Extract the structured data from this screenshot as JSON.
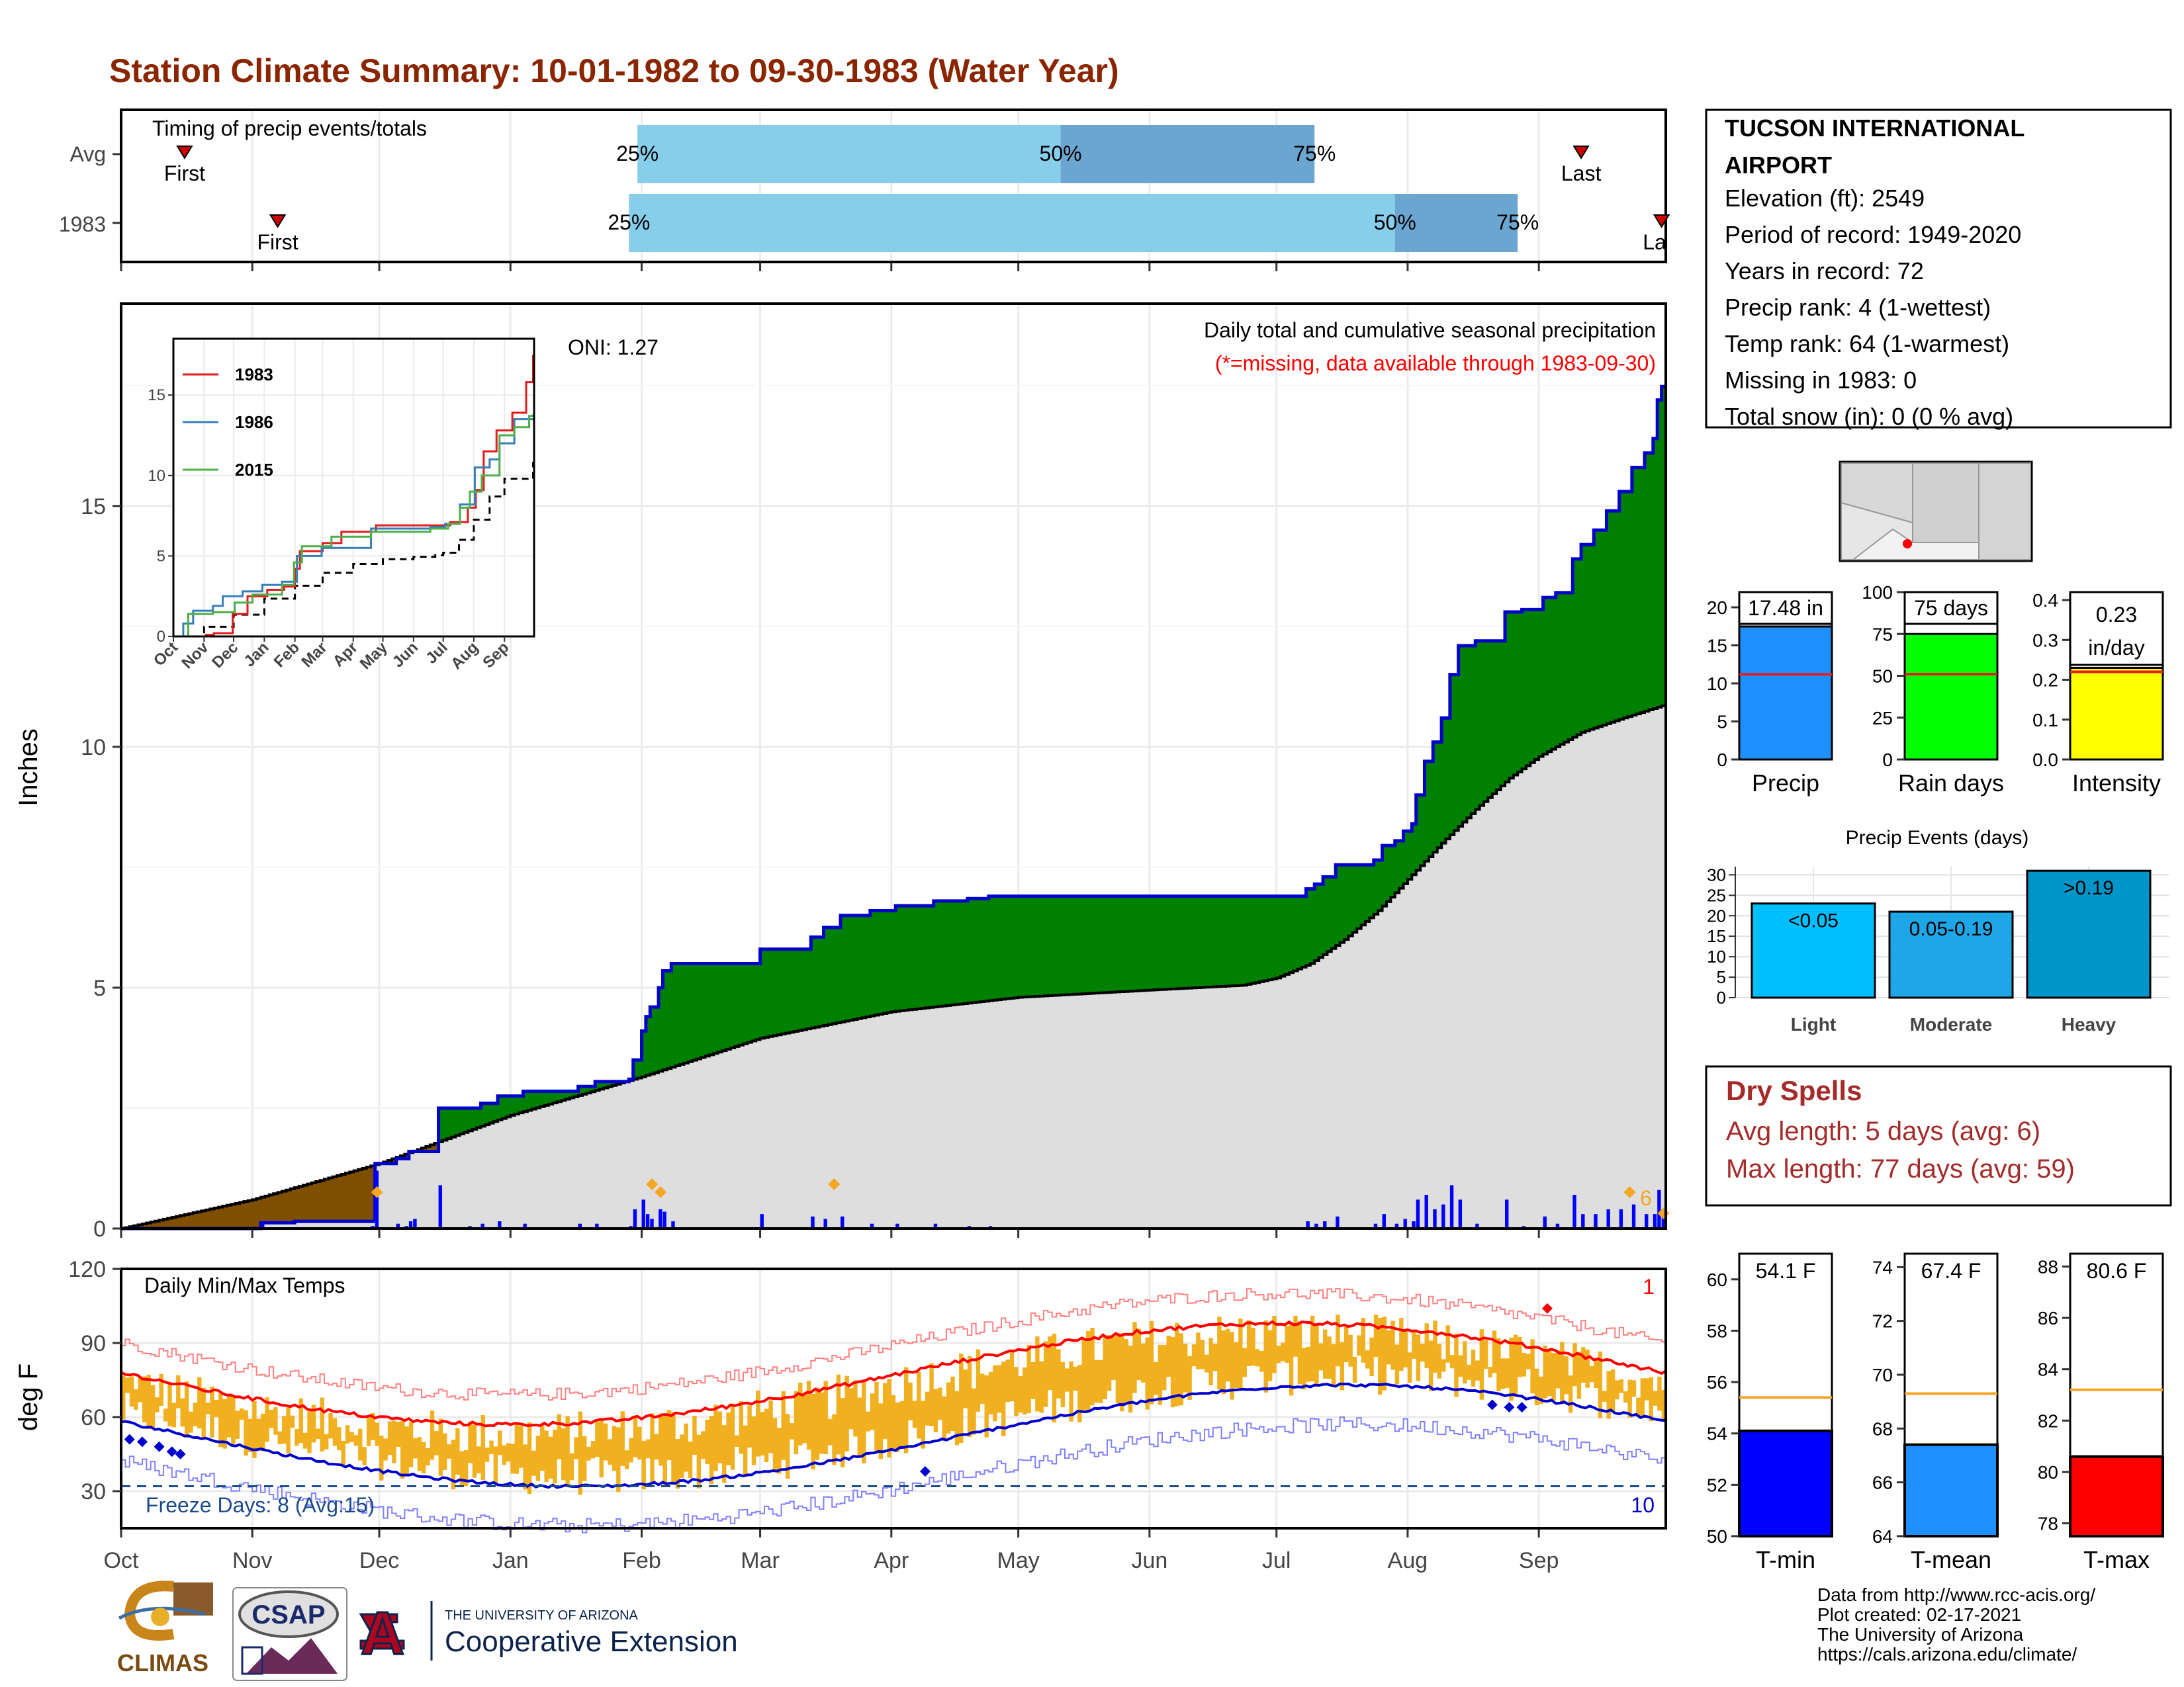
{
  "title": "Station Climate Summary: 10-01-1982 to 09-30-1983 (Water Year)",
  "colors": {
    "title": "#8B2500",
    "avg_fill": "#dedede",
    "above_fill": "#008000",
    "below_fill": "#7f4f00",
    "cum_line": "#0000cc",
    "daily_bar": "#0000ff",
    "range_bar": "#f0b020",
    "tmax_avg": "#ff0000",
    "tmin_avg": "#0000cc",
    "light_blue": "#87ceeb",
    "mid_blue": "#6aa6d0",
    "brown_red": "#a52a2a"
  },
  "timing": {
    "label": "Timing of precip events/totals",
    "rows": [
      {
        "name": "Avg",
        "first_label": "First",
        "last_label": "Last",
        "first_day": 15,
        "last_day": 345,
        "p25_day": 122,
        "p50_day": 222,
        "p75_day": 282,
        "p25_label": "25%",
        "p50_label": "50%",
        "p75_label": "75%"
      },
      {
        "name": "1983",
        "first_label": "First",
        "last_label": "La",
        "first_day": 37,
        "last_day": 364,
        "p25_day": 120,
        "p50_day": 301,
        "p75_day": 330,
        "p25_label": "25%",
        "p50_label": "50%",
        "p75_label": "75%"
      }
    ]
  },
  "month_labels": [
    "Oct",
    "Nov",
    "Dec",
    "Jan",
    "Feb",
    "Mar",
    "Apr",
    "May",
    "Jun",
    "Jul",
    "Aug",
    "Sep"
  ],
  "month_starts": [
    0,
    31,
    61,
    92,
    123,
    151,
    182,
    212,
    243,
    273,
    304,
    335
  ],
  "main": {
    "ylabel": "Inches",
    "yticks": [
      0,
      5,
      10,
      15
    ],
    "ylim": [
      0,
      19.2
    ],
    "oni": "ONI: 1.27",
    "caption": "Daily total and cumulative seasonal precipitation",
    "missing_note": "(*=missing, data available through 1983-09-30)",
    "marker_label": "6",
    "inset": {
      "yticks": [
        0,
        5,
        10,
        15
      ],
      "ylim": [
        0,
        18.5
      ],
      "xlabels": [
        "Oct",
        "Nov",
        "Dec",
        "Jan",
        "Feb",
        "Mar",
        "Apr",
        "May",
        "Jun",
        "Jul",
        "Aug",
        "Sep"
      ],
      "legend": [
        {
          "name": "1983",
          "color": "#e41a1c"
        },
        {
          "name": "1986",
          "color": "#377eb8"
        },
        {
          "name": "2015",
          "color": "#4daf4a"
        }
      ]
    }
  },
  "temps": {
    "ylabel": "deg F",
    "label": "Daily Min/Max Temps",
    "yticks": [
      30,
      60,
      90,
      120
    ],
    "ylim": [
      15,
      120
    ],
    "freeze_label": "Freeze Days: 8 (Avg:15)",
    "freeze_line": 32,
    "record_high_count": "1",
    "record_low_count": "10"
  },
  "station": {
    "name_line1": "TUCSON INTERNATIONAL",
    "name_line2": "AIRPORT",
    "lines": [
      "Elevation (ft): 2549",
      "Period of record: 1949-2020",
      "Years in record: 72",
      "Precip rank: 4 (1-wettest)",
      "Temp rank: 64 (1-warmest)",
      "Missing in 1983: 0",
      "Total snow (in): 0 (0 % avg)"
    ]
  },
  "summary_bars": [
    {
      "name": "Precip",
      "label": "17.48 in",
      "value": 17.48,
      "avg": 11.2,
      "ymax": 22,
      "yticks": [
        0,
        5,
        10,
        15,
        20
      ],
      "color": "#1e90ff"
    },
    {
      "name": "Rain days",
      "label": "75 days",
      "value": 75,
      "avg": 51,
      "ymax": 100,
      "yticks": [
        0,
        25,
        50,
        75,
        100
      ],
      "color": "#00ff00"
    },
    {
      "name": "Intensity",
      "label": "0.23",
      "label2": "in/day",
      "value": 0.23,
      "avg": 0.22,
      "ymax": 0.42,
      "yticks": [
        0.0,
        0.1,
        0.2,
        0.3,
        0.4
      ],
      "color": "#ffff00"
    }
  ],
  "events": {
    "title": "Precip Events (days)",
    "yticks": [
      0,
      5,
      10,
      15,
      20,
      25,
      30
    ],
    "ymax": 32,
    "bars": [
      {
        "name": "Light",
        "range": "<0.05",
        "value": 23,
        "color": "#00bfff"
      },
      {
        "name": "Moderate",
        "range": "0.05-0.19",
        "value": 21,
        "color": "#1ea7e8"
      },
      {
        "name": "Heavy",
        "range": ">0.19",
        "value": 31,
        "color": "#0095c8"
      }
    ]
  },
  "dry_spells": {
    "title": "Dry Spells",
    "avg_line": "Avg length: 5 days (avg: 6)",
    "max_line": "Max length: 77 days (avg: 59)"
  },
  "temp_bars": [
    {
      "name": "T-min",
      "label": "54.1 F",
      "value": 54.1,
      "avg": 55.4,
      "ymin": 50,
      "ymax": 61,
      "yticks": [
        50,
        52,
        54,
        56,
        58,
        60
      ],
      "color": "#0000ff"
    },
    {
      "name": "T-mean",
      "label": "67.4 F",
      "value": 67.4,
      "avg": 69.3,
      "ymin": 64,
      "ymax": 74.5,
      "yticks": [
        64,
        66,
        68,
        70,
        72,
        74
      ],
      "color": "#1e90ff"
    },
    {
      "name": "T-max",
      "label": "80.6 F",
      "value": 80.6,
      "avg": 83.2,
      "ymin": 77.5,
      "ymax": 88.5,
      "yticks": [
        78,
        80,
        82,
        84,
        86,
        88
      ],
      "color": "#ff0000"
    }
  ],
  "credits": [
    "Data from http://www.rcc-acis.org/",
    "Plot created: 02-17-2021",
    "The University of Arizona",
    "https://cals.arizona.edu/climate/"
  ],
  "logos": {
    "climas": "CLIMAS",
    "csap": "CSAP",
    "ua_small": "THE UNIVERSITY OF ARIZONA",
    "ua_big": "Cooperative Extension",
    "ua_letter": "A"
  },
  "chart_data": {
    "type": "area",
    "title": "Station Climate Summary: 10-01-1982 to 09-30-1983 (Water Year)",
    "ylabel": "Inches",
    "xlabel": "",
    "ylim": [
      0,
      19.2
    ],
    "x_categories": [
      "Oct",
      "Nov",
      "Dec",
      "Jan",
      "Feb",
      "Mar",
      "Apr",
      "May",
      "Jun",
      "Jul",
      "Aug",
      "Sep"
    ],
    "cumulative_1983_steps": [
      [
        0,
        0
      ],
      [
        33,
        0.12
      ],
      [
        41,
        0.15
      ],
      [
        60,
        1.35
      ],
      [
        65,
        1.45
      ],
      [
        68,
        1.6
      ],
      [
        75,
        2.5
      ],
      [
        85,
        2.6
      ],
      [
        89,
        2.75
      ],
      [
        95,
        2.85
      ],
      [
        108,
        2.95
      ],
      [
        112,
        3.05
      ],
      [
        120,
        3.1
      ],
      [
        121,
        3.5
      ],
      [
        123,
        4.1
      ],
      [
        124,
        4.4
      ],
      [
        125,
        4.6
      ],
      [
        127,
        5.0
      ],
      [
        128,
        5.35
      ],
      [
        130,
        5.5
      ],
      [
        151,
        5.8
      ],
      [
        163,
        6.05
      ],
      [
        166,
        6.25
      ],
      [
        170,
        6.5
      ],
      [
        177,
        6.6
      ],
      [
        183,
        6.7
      ],
      [
        192,
        6.8
      ],
      [
        200,
        6.85
      ],
      [
        205,
        6.9
      ],
      [
        280,
        7.05
      ],
      [
        282,
        7.15
      ],
      [
        284,
        7.3
      ],
      [
        287,
        7.55
      ],
      [
        296,
        7.65
      ],
      [
        298,
        7.95
      ],
      [
        301,
        8.05
      ],
      [
        303,
        8.25
      ],
      [
        305,
        8.4
      ],
      [
        306,
        9.0
      ],
      [
        308,
        9.7
      ],
      [
        310,
        10.1
      ],
      [
        312,
        10.6
      ],
      [
        314,
        11.5
      ],
      [
        316,
        12.1
      ],
      [
        320,
        12.2
      ],
      [
        327,
        12.8
      ],
      [
        331,
        12.85
      ],
      [
        336,
        13.1
      ],
      [
        339,
        13.2
      ],
      [
        343,
        13.9
      ],
      [
        345,
        14.2
      ],
      [
        348,
        14.5
      ],
      [
        351,
        14.9
      ],
      [
        354,
        15.3
      ],
      [
        357,
        15.8
      ],
      [
        360,
        16.1
      ],
      [
        362,
        16.4
      ],
      [
        363,
        17.2
      ],
      [
        364,
        17.48
      ]
    ],
    "cumulative_avg": [
      [
        0,
        0
      ],
      [
        31,
        0.6
      ],
      [
        61,
        1.35
      ],
      [
        92,
        2.35
      ],
      [
        123,
        3.15
      ],
      [
        151,
        3.95
      ],
      [
        182,
        4.5
      ],
      [
        212,
        4.8
      ],
      [
        243,
        4.95
      ],
      [
        265,
        5.05
      ],
      [
        273,
        5.2
      ],
      [
        281,
        5.5
      ],
      [
        289,
        6.0
      ],
      [
        297,
        6.6
      ],
      [
        304,
        7.25
      ],
      [
        312,
        8.0
      ],
      [
        320,
        8.7
      ],
      [
        328,
        9.35
      ],
      [
        335,
        9.8
      ],
      [
        345,
        10.3
      ],
      [
        355,
        10.6
      ],
      [
        364,
        10.85
      ]
    ],
    "daily_precip": [
      [
        33,
        0.12
      ],
      [
        41,
        0.03
      ],
      [
        59,
        0.05
      ],
      [
        60,
        1.2
      ],
      [
        65,
        0.1
      ],
      [
        67,
        0.05
      ],
      [
        68,
        0.15
      ],
      [
        69,
        0.2
      ],
      [
        75,
        0.9
      ],
      [
        82,
        0.05
      ],
      [
        85,
        0.1
      ],
      [
        89,
        0.15
      ],
      [
        95,
        0.1
      ],
      [
        108,
        0.1
      ],
      [
        112,
        0.1
      ],
      [
        120,
        0.05
      ],
      [
        121,
        0.4
      ],
      [
        123,
        0.6
      ],
      [
        124,
        0.3
      ],
      [
        125,
        0.2
      ],
      [
        127,
        0.4
      ],
      [
        128,
        0.35
      ],
      [
        130,
        0.15
      ],
      [
        151,
        0.3
      ],
      [
        163,
        0.25
      ],
      [
        166,
        0.2
      ],
      [
        170,
        0.25
      ],
      [
        177,
        0.1
      ],
      [
        183,
        0.1
      ],
      [
        192,
        0.1
      ],
      [
        200,
        0.05
      ],
      [
        205,
        0.05
      ],
      [
        280,
        0.15
      ],
      [
        282,
        0.1
      ],
      [
        284,
        0.15
      ],
      [
        287,
        0.25
      ],
      [
        296,
        0.1
      ],
      [
        298,
        0.3
      ],
      [
        301,
        0.1
      ],
      [
        303,
        0.2
      ],
      [
        305,
        0.15
      ],
      [
        306,
        0.6
      ],
      [
        308,
        0.7
      ],
      [
        310,
        0.4
      ],
      [
        312,
        0.5
      ],
      [
        314,
        0.9
      ],
      [
        316,
        0.6
      ],
      [
        320,
        0.1
      ],
      [
        327,
        0.6
      ],
      [
        331,
        0.05
      ],
      [
        336,
        0.25
      ],
      [
        339,
        0.1
      ],
      [
        343,
        0.7
      ],
      [
        345,
        0.3
      ],
      [
        348,
        0.3
      ],
      [
        351,
        0.4
      ],
      [
        354,
        0.4
      ],
      [
        357,
        0.5
      ],
      [
        360,
        0.3
      ],
      [
        362,
        0.3
      ],
      [
        363,
        0.8
      ],
      [
        364,
        0.28
      ]
    ]
  }
}
